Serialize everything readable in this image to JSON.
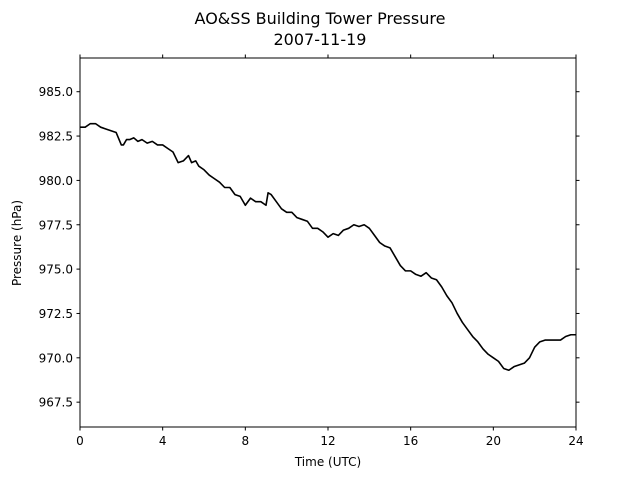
{
  "chart_data": {
    "type": "line",
    "title": "AO&SS Building Tower Pressure",
    "subtitle": "2007-11-19",
    "xlabel": "Time (UTC)",
    "ylabel": "Pressure (hPa)",
    "xlim": [
      0,
      24
    ],
    "ylim": [
      966.1,
      986.9
    ],
    "xticks": [
      0,
      4,
      8,
      12,
      16,
      20,
      24
    ],
    "yticks": [
      967.5,
      970.0,
      972.5,
      975.0,
      977.5,
      980.0,
      982.5,
      985.0
    ],
    "ytick_format": "0.1f",
    "grid": false,
    "legend": "none",
    "line_color": "#000000",
    "series": [
      {
        "x": [
          0.0,
          0.25,
          0.5,
          0.75,
          1.0,
          1.25,
          1.5,
          1.75,
          2.0,
          2.1,
          2.25,
          2.4,
          2.6,
          2.8,
          3.0,
          3.25,
          3.5,
          3.75,
          4.0,
          4.25,
          4.5,
          4.75,
          5.0,
          5.25,
          5.4,
          5.6,
          5.75,
          6.0,
          6.25,
          6.5,
          6.75,
          7.0,
          7.25,
          7.5,
          7.75,
          8.0,
          8.25,
          8.5,
          8.75,
          9.0,
          9.1,
          9.25,
          9.5,
          9.75,
          10.0,
          10.25,
          10.5,
          10.75,
          11.0,
          11.25,
          11.5,
          11.75,
          12.0,
          12.25,
          12.5,
          12.75,
          13.0,
          13.25,
          13.5,
          13.75,
          14.0,
          14.25,
          14.5,
          14.75,
          15.0,
          15.25,
          15.5,
          15.75,
          16.0,
          16.25,
          16.5,
          16.75,
          17.0,
          17.25,
          17.5,
          17.75,
          18.0,
          18.25,
          18.5,
          18.75,
          19.0,
          19.25,
          19.5,
          19.75,
          20.0,
          20.25,
          20.5,
          20.75,
          21.0,
          21.25,
          21.5,
          21.75,
          22.0,
          22.25,
          22.5,
          22.75,
          23.0,
          23.25,
          23.5,
          23.75,
          24.0
        ],
        "values": [
          983.0,
          983.0,
          983.2,
          983.2,
          983.0,
          982.9,
          982.8,
          982.7,
          982.0,
          982.0,
          982.3,
          982.3,
          982.4,
          982.2,
          982.3,
          982.1,
          982.2,
          982.0,
          982.0,
          981.8,
          981.6,
          981.0,
          981.1,
          981.4,
          981.0,
          981.1,
          980.8,
          980.6,
          980.3,
          980.1,
          979.9,
          979.6,
          979.6,
          979.2,
          979.1,
          978.6,
          979.0,
          978.8,
          978.8,
          978.6,
          979.3,
          979.2,
          978.8,
          978.4,
          978.2,
          978.2,
          977.9,
          977.8,
          977.7,
          977.3,
          977.3,
          977.1,
          976.8,
          977.0,
          976.9,
          977.2,
          977.3,
          977.5,
          977.4,
          977.5,
          977.3,
          976.9,
          976.5,
          976.3,
          976.2,
          975.7,
          975.2,
          974.9,
          974.9,
          974.7,
          974.6,
          974.8,
          974.5,
          974.4,
          974.0,
          973.5,
          973.1,
          972.5,
          972.0,
          971.6,
          971.2,
          970.9,
          970.5,
          970.2,
          970.0,
          969.8,
          969.4,
          969.3,
          969.5,
          969.6,
          969.7,
          970.0,
          970.6,
          970.9,
          971.0,
          971.0,
          971.0,
          971.0,
          971.2,
          971.3,
          971.3
        ]
      }
    ]
  }
}
